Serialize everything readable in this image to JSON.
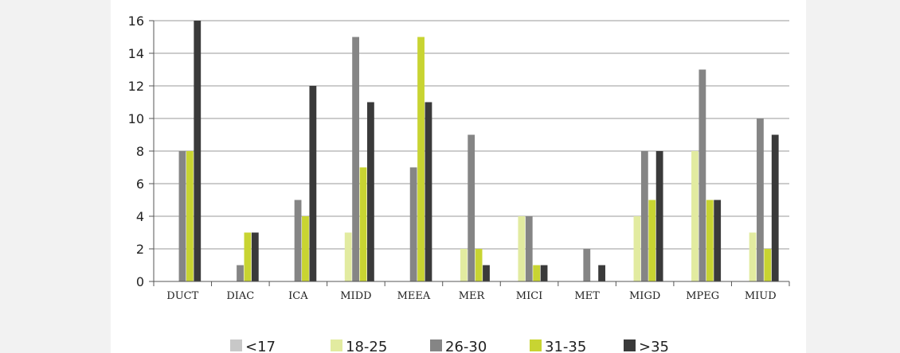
{
  "chart_data": {
    "type": "bar",
    "categories": [
      "DUCT",
      "DIAC",
      "ICA",
      "MIDD",
      "MEEA",
      "MER",
      "MICI",
      "MET",
      "MIGD",
      "MPEG",
      "MIUD"
    ],
    "series": [
      {
        "name": "<17",
        "color": "#c8c8c8",
        "values": [
          0,
          0,
          0,
          0,
          0,
          0,
          0,
          0,
          0,
          0,
          0
        ]
      },
      {
        "name": "18-25",
        "color": "#e2eba0",
        "values": [
          0,
          0,
          0,
          3,
          0,
          2,
          4,
          0,
          4,
          8,
          3
        ]
      },
      {
        "name": "26-30",
        "color": "#858585",
        "values": [
          8,
          1,
          5,
          15,
          7,
          9,
          4,
          2,
          8,
          13,
          10
        ]
      },
      {
        "name": "31-35",
        "color": "#c8d432",
        "values": [
          8,
          3,
          4,
          7,
          15,
          2,
          1,
          0,
          5,
          5,
          2
        ]
      },
      {
        "name": ">35",
        "color": "#3a3a3a",
        "values": [
          16,
          3,
          12,
          11,
          11,
          1,
          1,
          1,
          8,
          5,
          9
        ]
      }
    ],
    "y_ticks": [
      "0",
      "2",
      "4",
      "6",
      "8",
      "10",
      "12",
      "14",
      "16"
    ],
    "ylim": [
      0,
      16
    ],
    "grid": true,
    "legend_position": "bottom"
  }
}
